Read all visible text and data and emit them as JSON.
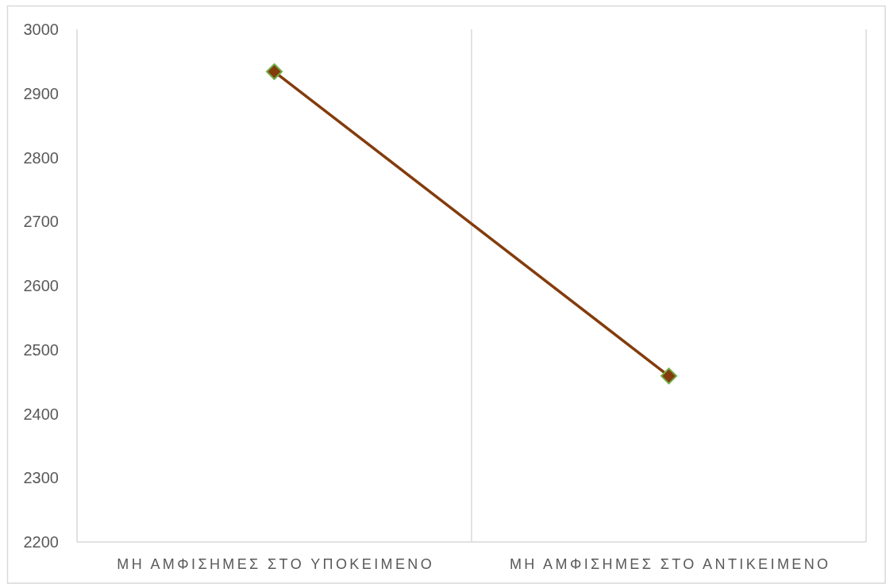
{
  "chart_data": {
    "type": "line",
    "categories": [
      "ΜΗ ΑΜΦΙΣΗΜΕΣ ΣΤΟ ΥΠΟΚΕΙΜΕΝΟ",
      "ΜΗ ΑΜΦΙΣΗΜΕΣ ΣΤΟ ΑΝΤΙΚΕΙΜΕΝΟ"
    ],
    "series": [
      {
        "color": "#843c0c",
        "values": [
          2934,
          2459
        ]
      }
    ],
    "ylim": [
      2200,
      3000
    ],
    "yticks": [
      2200,
      2300,
      2400,
      2500,
      2600,
      2700,
      2800,
      2900,
      3000
    ],
    "grid": "x",
    "marker": "diamond",
    "line_style": "solid"
  }
}
